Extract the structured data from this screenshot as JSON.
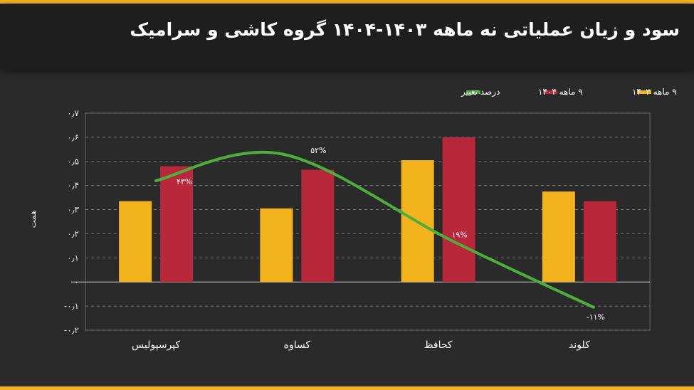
{
  "title": "سود و زیان عملیاتی نه ماهه ۱۴۰۳-۱۴۰۴ گروه کاشی و سرامیک",
  "colors": {
    "series_1403": "#f2b21c",
    "series_1404": "#b8283a",
    "change_line": "#4caf3c",
    "accent": "#f2b21c"
  },
  "chart_data": {
    "type": "bar",
    "title": "سود و زیان عملیاتی نه ماهه ۱۴۰۳-۱۴۰۴ گروه کاشی و سرامیک",
    "categories": [
      "کپرسپولیس",
      "کساوه",
      "کحافظ",
      "کلوند"
    ],
    "series": [
      {
        "name": "۹ ماهه ۱۴۰۳",
        "values": [
          0.335,
          0.305,
          0.505,
          0.375
        ]
      },
      {
        "name": "۹ ماهه ۱۴۰۴",
        "values": [
          0.48,
          0.465,
          0.6,
          0.335
        ]
      }
    ],
    "line_series": {
      "name": "درصد تغییر",
      "labels": [
        "۴۳%",
        "۵۲%",
        "۱۹%",
        "-۱۱%"
      ]
    },
    "ylabel": "همت",
    "xlabel": "",
    "ylim": [
      -0.2,
      0.7
    ],
    "yticks": [
      0.7,
      0.6,
      0.5,
      0.4,
      0.3,
      0.2,
      0.1,
      0,
      -0.1,
      -0.2
    ],
    "ytick_labels": [
      "۰٫۷",
      "۰٫۶",
      "۰٫۵",
      "۰٫۴",
      "۰٫۳",
      "۰٫۲",
      "۰٫۱",
      "۰",
      "-۰٫۱",
      "-۰٫۲"
    ],
    "grid": true,
    "legend_position": "top-right"
  }
}
